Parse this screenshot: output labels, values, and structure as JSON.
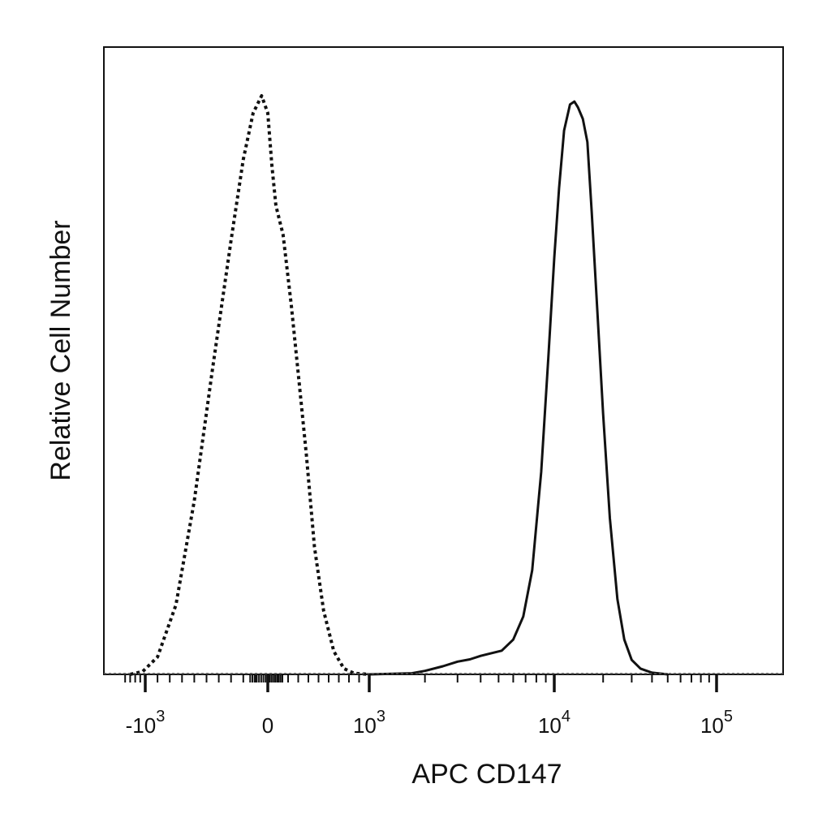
{
  "chart_data": {
    "type": "line",
    "title": "",
    "xlabel": "APC  CD147",
    "ylabel": "Relative Cell Number",
    "x_scale": "biexponential",
    "xlim": [
      -1500,
      150000
    ],
    "ylim": [
      0,
      100
    ],
    "grid": false,
    "legend": "none",
    "x_ticks": [
      {
        "value": -1000,
        "base": "-10",
        "exp": "3"
      },
      {
        "value": 0,
        "base": "0",
        "exp": ""
      },
      {
        "value": 1000,
        "base": "10",
        "exp": "3"
      },
      {
        "value": 10000,
        "base": "10",
        "exp": "4"
      },
      {
        "value": 100000,
        "base": "10",
        "exp": "5"
      }
    ],
    "series": [
      {
        "style": "dotted",
        "color": "#111111",
        "points": [
          [
            -1300,
            0
          ],
          [
            -1050,
            0.5
          ],
          [
            -900,
            3
          ],
          [
            -750,
            12
          ],
          [
            -600,
            30
          ],
          [
            -450,
            53
          ],
          [
            -300,
            75
          ],
          [
            -200,
            89
          ],
          [
            -120,
            97
          ],
          [
            -50,
            100
          ],
          [
            0,
            97
          ],
          [
            40,
            88
          ],
          [
            80,
            81
          ],
          [
            150,
            76
          ],
          [
            230,
            64
          ],
          [
            300,
            52
          ],
          [
            380,
            38
          ],
          [
            460,
            22
          ],
          [
            550,
            11
          ],
          [
            650,
            4
          ],
          [
            750,
            1
          ],
          [
            850,
            0.2
          ],
          [
            1000,
            0
          ]
        ]
      },
      {
        "style": "solid",
        "color": "#111111",
        "points": [
          [
            1000,
            0
          ],
          [
            1700,
            0.2
          ],
          [
            2000,
            0.6
          ],
          [
            2500,
            1.4
          ],
          [
            3000,
            2.2
          ],
          [
            3500,
            2.6
          ],
          [
            4000,
            3.2
          ],
          [
            4500,
            3.6
          ],
          [
            5200,
            4.1
          ],
          [
            6000,
            6
          ],
          [
            6800,
            10
          ],
          [
            7600,
            18
          ],
          [
            8500,
            35
          ],
          [
            9300,
            55
          ],
          [
            10000,
            72
          ],
          [
            10700,
            84
          ],
          [
            11500,
            94
          ],
          [
            12500,
            98.5
          ],
          [
            13300,
            99
          ],
          [
            14000,
            98
          ],
          [
            15000,
            96
          ],
          [
            16000,
            92
          ],
          [
            17000,
            80
          ],
          [
            18500,
            62
          ],
          [
            20000,
            45
          ],
          [
            22000,
            27
          ],
          [
            24500,
            13
          ],
          [
            27000,
            6
          ],
          [
            30000,
            2.5
          ],
          [
            34000,
            1
          ],
          [
            40000,
            0.3
          ],
          [
            50000,
            0
          ]
        ]
      }
    ]
  }
}
